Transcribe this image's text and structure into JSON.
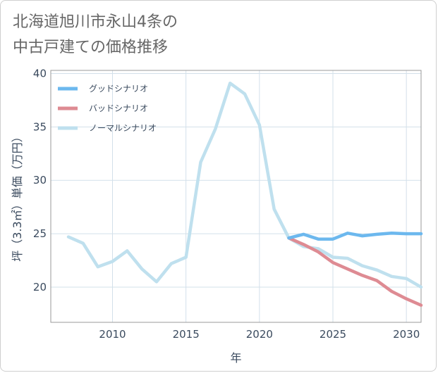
{
  "title_line1": "北海道旭川市永山4条の",
  "title_line2": "中古戸建ての価格推移",
  "chart_data": {
    "type": "line",
    "xlabel": "年",
    "ylabel": "坪（3.3㎡）単価（万円）",
    "xlim": [
      2005.8,
      2031
    ],
    "ylim": [
      16.7,
      40.3
    ],
    "x_ticks": [
      2010,
      2015,
      2020,
      2025,
      2030
    ],
    "y_ticks": [
      20,
      25,
      30,
      35,
      40
    ],
    "grid": true,
    "legend_position": "top-left",
    "series": [
      {
        "name": "グッドシナリオ",
        "color": "#6cb8ee",
        "x": [
          2022,
          2023,
          2024,
          2025,
          2026,
          2027,
          2028,
          2029,
          2030,
          2031
        ],
        "y": [
          24.6,
          24.95,
          24.5,
          24.5,
          25.05,
          24.8,
          24.95,
          25.05,
          25.0,
          25.0
        ]
      },
      {
        "name": "バッドシナリオ",
        "color": "#de8b93",
        "x": [
          2022,
          2023,
          2024,
          2025,
          2026,
          2027,
          2028,
          2029,
          2030,
          2031
        ],
        "y": [
          24.6,
          24.0,
          23.3,
          22.3,
          21.7,
          21.1,
          20.6,
          19.6,
          18.9,
          18.3
        ]
      },
      {
        "name": "ノーマルシナリオ",
        "color": "#bfe0ee",
        "x": [
          2007,
          2008,
          2009,
          2010,
          2011,
          2012,
          2013,
          2014,
          2015,
          2016,
          2017,
          2018,
          2019,
          2020,
          2021,
          2022,
          2023,
          2024,
          2025,
          2026,
          2027,
          2028,
          2029,
          2030,
          2031
        ],
        "y": [
          24.7,
          24.1,
          21.9,
          22.4,
          23.4,
          21.7,
          20.5,
          22.2,
          22.8,
          31.7,
          34.8,
          39.1,
          38.1,
          35.2,
          27.3,
          24.6,
          23.8,
          23.6,
          22.8,
          22.7,
          22.0,
          21.6,
          21.0,
          20.8,
          20.0
        ]
      }
    ]
  }
}
